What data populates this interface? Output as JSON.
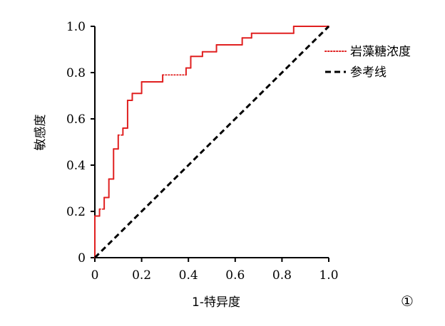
{
  "chart_data": {
    "type": "line",
    "title": "",
    "xlabel": "1-特异度",
    "ylabel": "敏感度",
    "xlim": [
      0,
      1
    ],
    "ylim": [
      0,
      1
    ],
    "x_ticks": [
      "0",
      "0.2",
      "0.4",
      "0.6",
      "0.8",
      "1.0"
    ],
    "y_ticks": [
      "0",
      "0.2",
      "0.4",
      "0.6",
      "0.8",
      "1.0"
    ],
    "grid": false,
    "legend_placement": "top-right",
    "figure_number": "①",
    "series": [
      {
        "name": "岩藻糖浓度",
        "color": "#e02020",
        "style": "stepped-dotted-solid",
        "points": [
          [
            0,
            0
          ],
          [
            0,
            0.18
          ],
          [
            0.02,
            0.18
          ],
          [
            0.02,
            0.21
          ],
          [
            0.04,
            0.21
          ],
          [
            0.04,
            0.26
          ],
          [
            0.06,
            0.26
          ],
          [
            0.06,
            0.34
          ],
          [
            0.08,
            0.34
          ],
          [
            0.08,
            0.47
          ],
          [
            0.1,
            0.47
          ],
          [
            0.1,
            0.53
          ],
          [
            0.12,
            0.53
          ],
          [
            0.12,
            0.56
          ],
          [
            0.14,
            0.56
          ],
          [
            0.14,
            0.68
          ],
          [
            0.16,
            0.68
          ],
          [
            0.16,
            0.71
          ],
          [
            0.2,
            0.71
          ],
          [
            0.2,
            0.76
          ],
          [
            0.29,
            0.76
          ],
          [
            0.29,
            0.79
          ],
          [
            0.39,
            0.79
          ],
          [
            0.39,
            0.82
          ],
          [
            0.41,
            0.82
          ],
          [
            0.41,
            0.87
          ],
          [
            0.46,
            0.87
          ],
          [
            0.46,
            0.89
          ],
          [
            0.52,
            0.89
          ],
          [
            0.52,
            0.92
          ],
          [
            0.63,
            0.92
          ],
          [
            0.63,
            0.95
          ],
          [
            0.67,
            0.95
          ],
          [
            0.67,
            0.97
          ],
          [
            0.85,
            0.97
          ],
          [
            0.85,
            1.0
          ],
          [
            1.0,
            1.0
          ]
        ]
      },
      {
        "name": "参考线",
        "color": "#000000",
        "style": "dashed",
        "points": [
          [
            0,
            0
          ],
          [
            1,
            1
          ]
        ]
      }
    ]
  }
}
